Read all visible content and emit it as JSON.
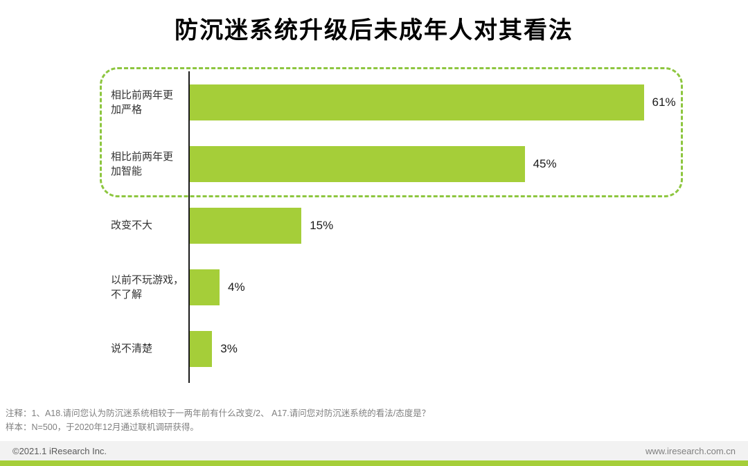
{
  "title": "防沉迷系统升级后未成年人对其看法",
  "chart_data": {
    "type": "bar",
    "orientation": "horizontal",
    "title": "防沉迷系统升级后未成年人对其看法",
    "categories": [
      "相比前两年更\n加严格",
      "相比前两年更\n加智能",
      "改变不大",
      "以前不玩游戏，\n不了解",
      "说不清楚"
    ],
    "values": [
      61,
      45,
      15,
      4,
      3
    ],
    "value_labels": [
      "61%",
      "45%",
      "15%",
      "4%",
      "3%"
    ],
    "unit": "%",
    "xlim": [
      0,
      75
    ],
    "grid": false,
    "legend": "none",
    "highlighted_categories": [
      "相比前两年更加严格",
      "相比前两年更加智能"
    ]
  },
  "colors": {
    "bar": "#a5ce39",
    "highlight_border": "#8dc63f",
    "axis": "#1a1a1a",
    "footer_strip": "#a5ce39",
    "footer_bg": "#f2f2f2"
  },
  "notes": {
    "line1": "注释：1、A18.请问您认为防沉迷系统相较于一两年前有什么改变/2、 A17.请问您对防沉迷系统的看法/态度是？",
    "line2": "样本：N=500，于2020年12月通过联机调研获得。"
  },
  "footer": {
    "copyright": "©2021.1 iResearch Inc.",
    "website": "www.iresearch.com.cn"
  }
}
